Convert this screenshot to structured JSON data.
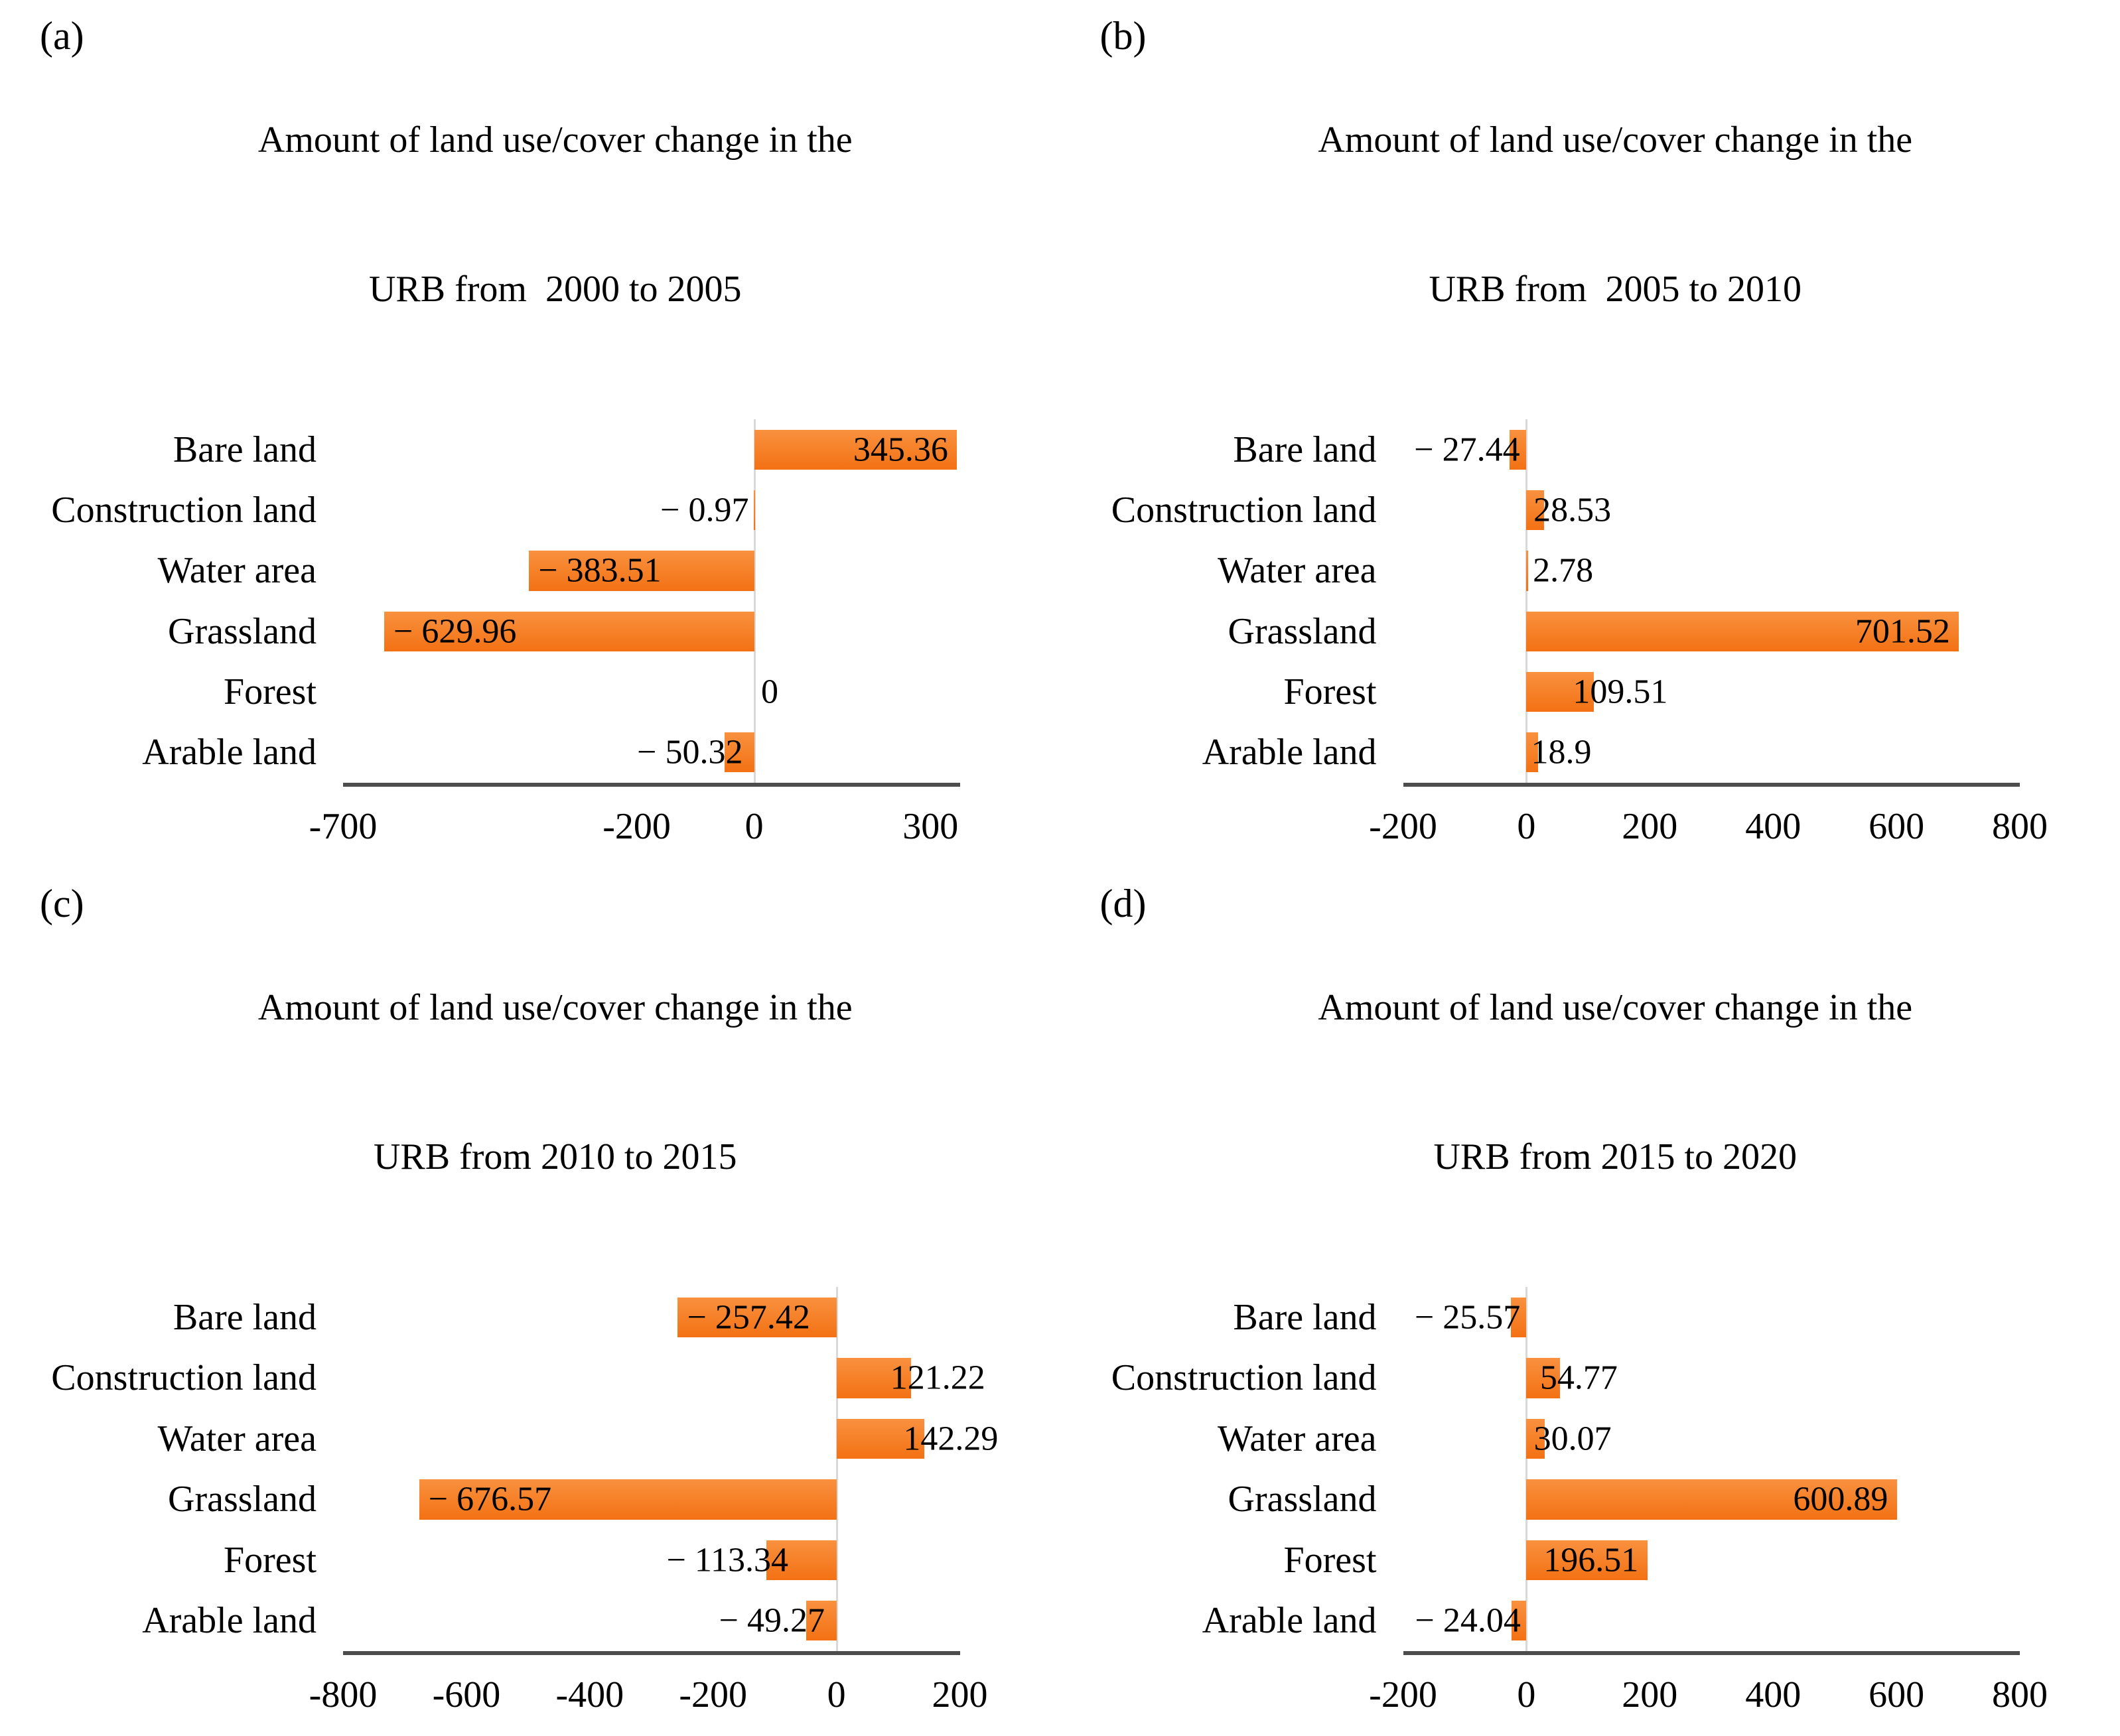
{
  "style": {
    "bar_gradient_top": "#f9913f",
    "bar_gradient_bottom": "#f37113",
    "zero_gridline_color": "#d9d9d9",
    "axis_line_color": "#4d4d4d",
    "text_color": "#000000",
    "background": "#ffffff"
  },
  "chart_data": [
    {
      "type": "bar",
      "orientation": "horizontal",
      "letter": "(a)",
      "title": "Amount of land use/cover change in the URB from  2000 to 2005",
      "title_line1": "Amount of land use/cover change in the",
      "title_line2": "URB from  2000 to 2005",
      "categories": [
        "Bare land",
        "Construction land",
        "Water area",
        "Grassland",
        "Forest",
        "Arable land"
      ],
      "values": [
        345.36,
        -0.97,
        -383.51,
        -629.96,
        0,
        -50.32
      ],
      "value_labels": [
        "345.36",
        "− 0.97",
        "− 383.51",
        "− 629.96",
        "0",
        "− 50.32"
      ],
      "xlim": [
        -700,
        350
      ],
      "ticks": [
        -700,
        -200,
        0,
        300
      ],
      "tick_labels": [
        "-700",
        "-200",
        "0",
        "300"
      ],
      "xlabel": "",
      "ylabel": "",
      "grid": false,
      "legend": false
    },
    {
      "type": "bar",
      "orientation": "horizontal",
      "letter": "(b)",
      "title": "Amount of land use/cover change in the URB from  2005 to 2010",
      "title_line1": "Amount of land use/cover change in the",
      "title_line2": "URB from  2005 to 2010",
      "categories": [
        "Bare land",
        "Construction land",
        "Water area",
        "Grassland",
        "Forest",
        "Arable land"
      ],
      "values": [
        -27.44,
        28.53,
        2.78,
        701.52,
        109.51,
        18.9
      ],
      "value_labels": [
        "− 27.44",
        "28.53",
        "2.78",
        "701.52",
        "109.51",
        "18.9"
      ],
      "xlim": [
        -200,
        800
      ],
      "ticks": [
        -200,
        0,
        200,
        400,
        600,
        800
      ],
      "tick_labels": [
        "-200",
        "0",
        "200",
        "400",
        "600",
        "800"
      ],
      "xlabel": "",
      "ylabel": "",
      "grid": false,
      "legend": false
    },
    {
      "type": "bar",
      "orientation": "horizontal",
      "letter": "(c)",
      "title": "Amount of land use/cover change in the URB from 2010 to 2015",
      "title_line1": "Amount of land use/cover change in the",
      "title_line2": "URB from 2010 to 2015",
      "categories": [
        "Bare land",
        "Construction land",
        "Water area",
        "Grassland",
        "Forest",
        "Arable land"
      ],
      "values": [
        -257.42,
        121.22,
        142.29,
        -676.57,
        -113.34,
        -49.27
      ],
      "value_labels": [
        "− 257.42",
        "121.22",
        "142.29",
        "− 676.57",
        "− 113.34",
        "− 49.27"
      ],
      "xlim": [
        -800,
        200
      ],
      "ticks": [
        -800,
        -600,
        -400,
        -200,
        0,
        200
      ],
      "tick_labels": [
        "-800",
        "-600",
        "-400",
        "-200",
        "0",
        "200"
      ],
      "xlabel": "",
      "ylabel": "",
      "grid": false,
      "legend": false
    },
    {
      "type": "bar",
      "orientation": "horizontal",
      "letter": "(d)",
      "title": "Amount of land use/cover change in the URB from 2015 to 2020",
      "title_line1": "Amount of land use/cover change in the",
      "title_line2": "URB from 2015 to 2020",
      "categories": [
        "Bare land",
        "Construction land",
        "Water area",
        "Grassland",
        "Forest",
        "Arable land"
      ],
      "values": [
        -25.57,
        54.77,
        30.07,
        600.89,
        196.51,
        -24.04
      ],
      "value_labels": [
        "− 25.57",
        "54.77",
        "30.07",
        "600.89",
        "196.51",
        "− 24.04"
      ],
      "xlim": [
        -200,
        800
      ],
      "ticks": [
        -200,
        0,
        200,
        400,
        600,
        800
      ],
      "tick_labels": [
        "-200",
        "0",
        "200",
        "400",
        "600",
        "800"
      ],
      "xlabel": "",
      "ylabel": "",
      "grid": false,
      "legend": false
    }
  ]
}
